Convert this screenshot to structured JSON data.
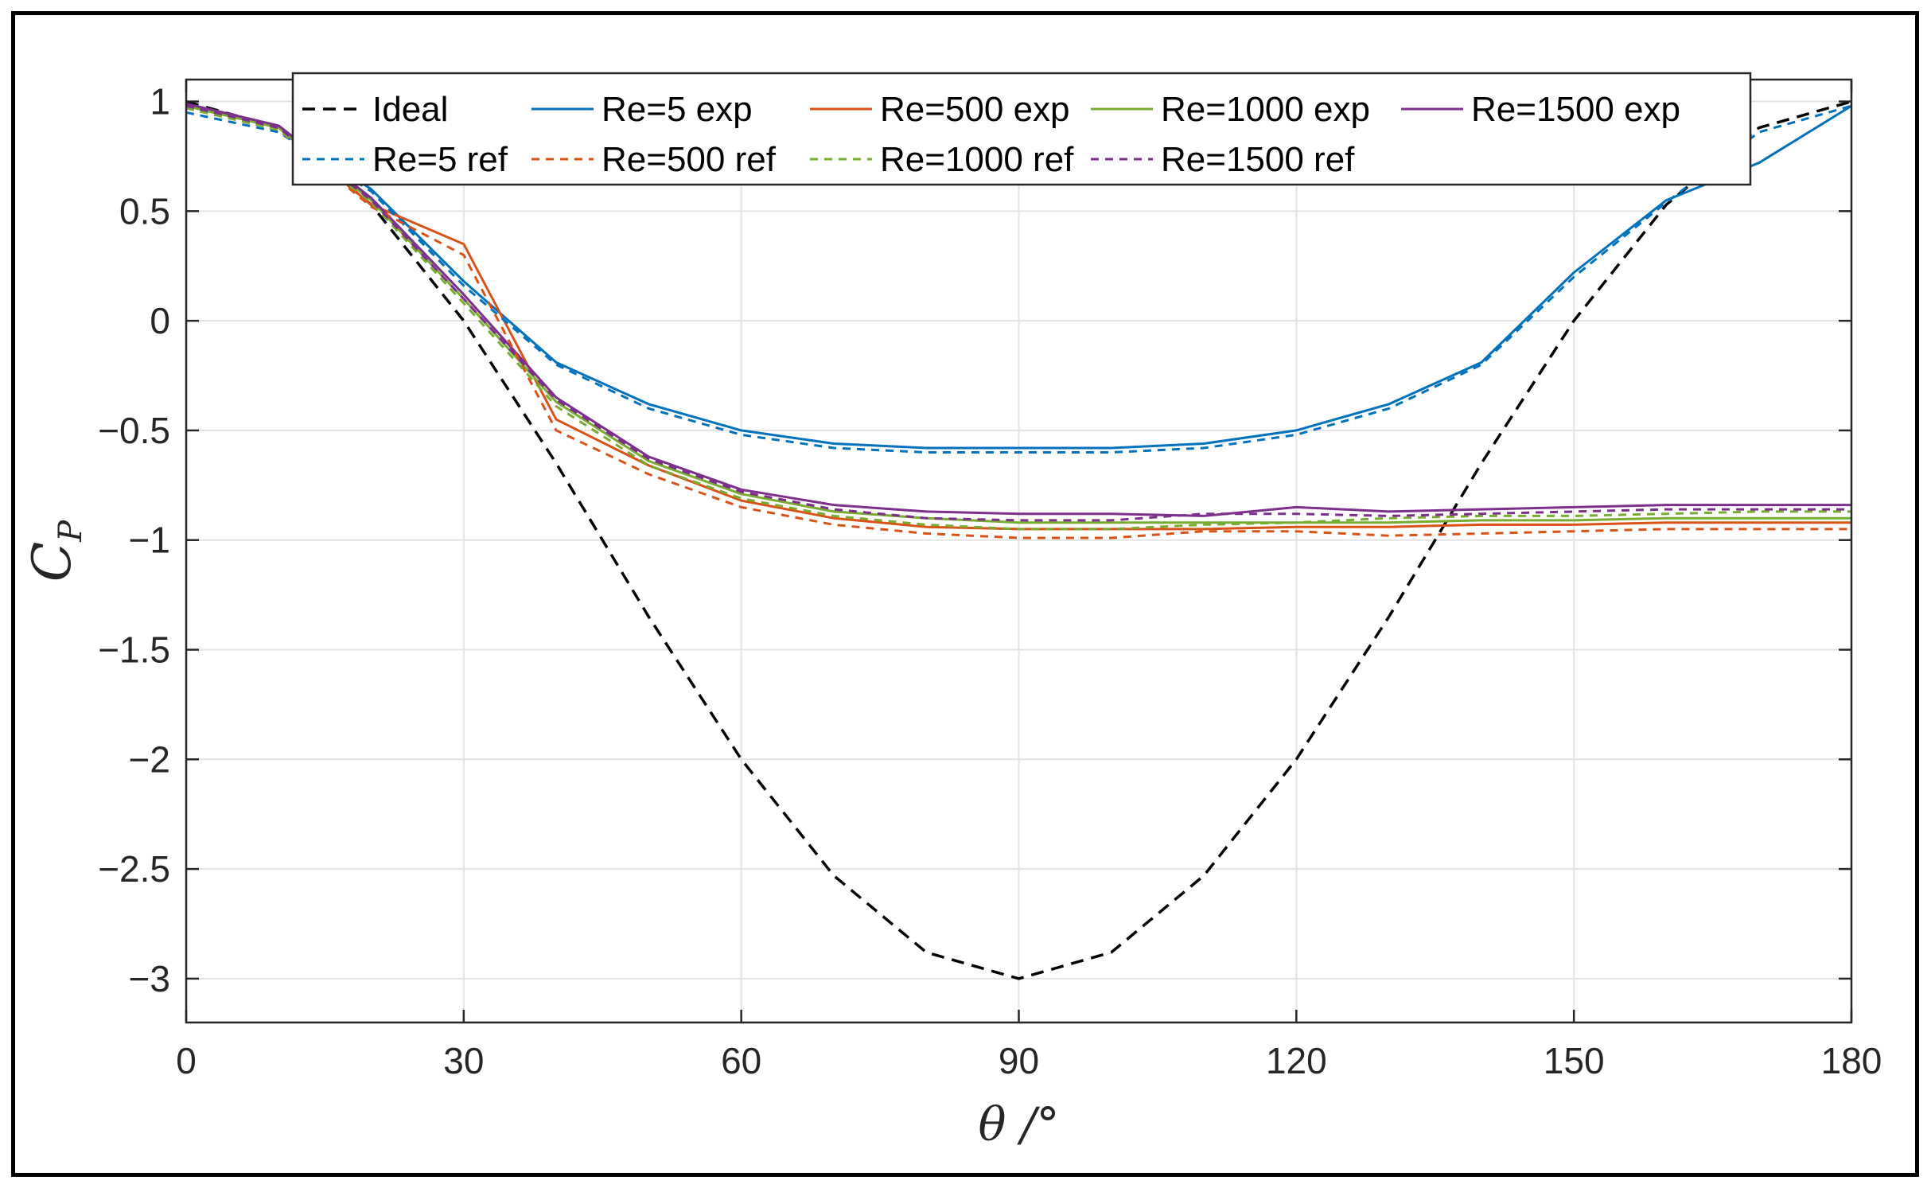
{
  "chart_data": {
    "type": "line",
    "title": "",
    "xlabel": "θ /°",
    "ylabel_main": "C",
    "ylabel_sub": "P",
    "xlim": [
      0,
      180
    ],
    "ylim": [
      -3.2,
      1.1
    ],
    "xticks": [
      0,
      30,
      60,
      90,
      120,
      150,
      180
    ],
    "yticks": [
      1,
      0.5,
      0,
      -0.5,
      -1,
      -1.5,
      -2,
      -2.5,
      -3
    ],
    "xtick_labels": [
      "0",
      "30",
      "60",
      "90",
      "120",
      "150",
      "180"
    ],
    "ytick_labels": [
      "1",
      "0.5",
      "0",
      "−0.5",
      "−1",
      "−1.5",
      "−2",
      "−2.5",
      "−3"
    ],
    "grid": true,
    "legend_position": "top",
    "x": [
      0,
      10,
      20,
      30,
      40,
      50,
      60,
      70,
      80,
      90,
      100,
      110,
      120,
      130,
      140,
      150,
      160,
      170,
      180
    ],
    "series": [
      {
        "name": "Ideal",
        "color": "#000000",
        "dash": "dashed",
        "values": [
          1,
          0.88,
          0.53,
          0,
          -0.65,
          -1.35,
          -2,
          -2.53,
          -2.88,
          -3,
          -2.88,
          -2.53,
          -2,
          -1.35,
          -0.65,
          0,
          0.53,
          0.88,
          1
        ]
      },
      {
        "name": "Re=5 exp",
        "color": "#0072BD",
        "dash": "solid",
        "values": [
          0.98,
          0.88,
          0.6,
          0.18,
          -0.19,
          -0.38,
          -0.5,
          -0.56,
          -0.58,
          -0.58,
          -0.58,
          -0.56,
          -0.5,
          -0.38,
          -0.19,
          0.22,
          0.55,
          0.72,
          0.98
        ]
      },
      {
        "name": "Re=500 exp",
        "color": "#D95319",
        "dash": "solid",
        "values": [
          0.98,
          0.88,
          0.53,
          0.35,
          -0.45,
          -0.66,
          -0.82,
          -0.9,
          -0.94,
          -0.95,
          -0.95,
          -0.95,
          -0.94,
          -0.94,
          -0.93,
          -0.93,
          -0.92,
          -0.92,
          -0.92
        ]
      },
      {
        "name": "Re=1000 exp",
        "color": "#77AC30",
        "dash": "solid",
        "values": [
          0.98,
          0.88,
          0.55,
          0.1,
          -0.37,
          -0.64,
          -0.79,
          -0.87,
          -0.9,
          -0.92,
          -0.92,
          -0.92,
          -0.92,
          -0.92,
          -0.91,
          -0.91,
          -0.9,
          -0.9,
          -0.9
        ]
      },
      {
        "name": "Re=1500 exp",
        "color": "#7E2F8E",
        "dash": "solid",
        "values": [
          0.99,
          0.89,
          0.56,
          0.12,
          -0.35,
          -0.62,
          -0.77,
          -0.84,
          -0.87,
          -0.88,
          -0.88,
          -0.89,
          -0.85,
          -0.87,
          -0.86,
          -0.85,
          -0.84,
          -0.84,
          -0.84
        ]
      },
      {
        "name": "Re=5 ref",
        "color": "#0072BD",
        "dash": "dashed",
        "values": [
          0.95,
          0.86,
          0.59,
          0.16,
          -0.2,
          -0.4,
          -0.52,
          -0.58,
          -0.6,
          -0.6,
          -0.6,
          -0.58,
          -0.52,
          -0.4,
          -0.2,
          0.2,
          0.54,
          0.86,
          0.98
        ]
      },
      {
        "name": "Re=500 ref",
        "color": "#D95319",
        "dash": "dashed",
        "values": [
          0.97,
          0.87,
          0.52,
          0.3,
          -0.5,
          -0.7,
          -0.85,
          -0.93,
          -0.97,
          -0.99,
          -0.99,
          -0.96,
          -0.96,
          -0.98,
          -0.97,
          -0.96,
          -0.95,
          -0.95,
          -0.95
        ]
      },
      {
        "name": "Re=1000 ref",
        "color": "#77AC30",
        "dash": "dashed",
        "values": [
          0.97,
          0.87,
          0.54,
          0.08,
          -0.39,
          -0.66,
          -0.81,
          -0.89,
          -0.93,
          -0.95,
          -0.95,
          -0.93,
          -0.92,
          -0.9,
          -0.89,
          -0.89,
          -0.88,
          -0.87,
          -0.87
        ]
      },
      {
        "name": "Re=1500 ref",
        "color": "#7E2F8E",
        "dash": "dashed",
        "values": [
          0.98,
          0.88,
          0.55,
          0.1,
          -0.36,
          -0.63,
          -0.78,
          -0.86,
          -0.9,
          -0.91,
          -0.91,
          -0.88,
          -0.88,
          -0.89,
          -0.88,
          -0.87,
          -0.86,
          -0.86,
          -0.86
        ]
      }
    ],
    "legend_rows": [
      [
        "Ideal",
        "Re=5 exp",
        "Re=500 exp",
        "Re=1000 exp",
        "Re=1500 exp"
      ],
      [
        "Re=5 ref",
        "Re=500 ref",
        "Re=1000 ref",
        "Re=1500 ref"
      ]
    ]
  }
}
